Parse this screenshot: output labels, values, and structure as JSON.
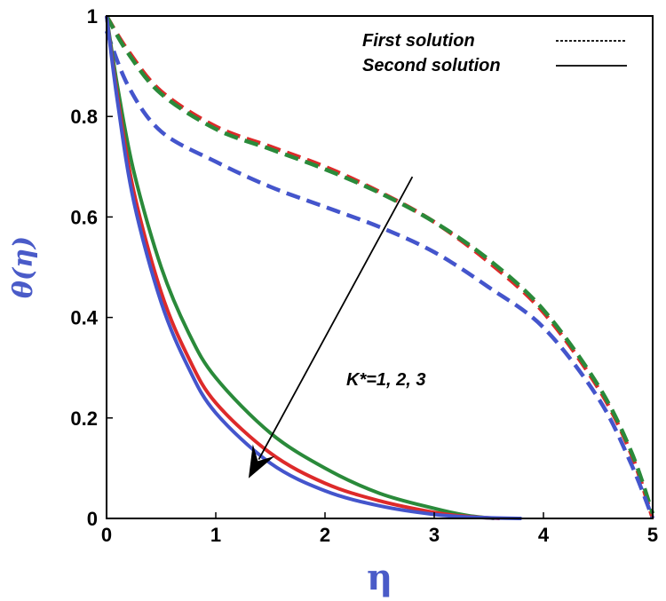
{
  "chart_data": {
    "type": "line",
    "xlabel": "η",
    "ylabel": "θ(η)",
    "xlim": [
      0,
      5
    ],
    "ylim": [
      0,
      1
    ],
    "xticks": [
      "0",
      "1",
      "2",
      "3",
      "4",
      "5"
    ],
    "yticks": [
      "0",
      "0.2",
      "0.4",
      "0.6",
      "0.8",
      "1"
    ],
    "legend": {
      "placement": "top-right",
      "entries": [
        {
          "label": "First solution",
          "style": "dashed"
        },
        {
          "label": "Second solution",
          "style": "solid"
        }
      ]
    },
    "annotation": {
      "text": "K*=1, 2, 3",
      "arrow_from": [
        2.8,
        0.68
      ],
      "arrow_to": [
        1.3,
        0.08
      ]
    },
    "series": [
      {
        "solution": "first",
        "color": "#dd2a2a",
        "dashed": true,
        "x": [
          0,
          0.2,
          0.5,
          1,
          1.5,
          2,
          2.5,
          3,
          3.5,
          4,
          4.5,
          4.8,
          5
        ],
        "y": [
          1,
          0.93,
          0.85,
          0.78,
          0.74,
          0.7,
          0.65,
          0.59,
          0.51,
          0.41,
          0.26,
          0.13,
          0.0
        ]
      },
      {
        "solution": "first",
        "color": "#2a8a3a",
        "dashed": true,
        "x": [
          0,
          0.2,
          0.5,
          1,
          1.5,
          2,
          2.5,
          3,
          3.5,
          4,
          4.5,
          4.8,
          5
        ],
        "y": [
          1,
          0.925,
          0.845,
          0.775,
          0.735,
          0.695,
          0.648,
          0.59,
          0.515,
          0.415,
          0.265,
          0.135,
          0.01
        ]
      },
      {
        "solution": "first",
        "color": "#4455cc",
        "dashed": true,
        "x": [
          0,
          0.2,
          0.5,
          1,
          1.5,
          2,
          2.5,
          3,
          3.5,
          4,
          4.5,
          4.8,
          5
        ],
        "y": [
          0.97,
          0.86,
          0.77,
          0.71,
          0.66,
          0.62,
          0.58,
          0.53,
          0.46,
          0.38,
          0.24,
          0.11,
          0.0
        ]
      },
      {
        "solution": "second",
        "color": "#2a8a3a",
        "dashed": false,
        "x": [
          0,
          0.1,
          0.25,
          0.5,
          0.75,
          1,
          1.5,
          2,
          2.5,
          3,
          3.3,
          3.55
        ],
        "y": [
          1,
          0.86,
          0.69,
          0.5,
          0.37,
          0.28,
          0.17,
          0.1,
          0.05,
          0.02,
          0.006,
          0.0
        ]
      },
      {
        "solution": "second",
        "color": "#dd2a2a",
        "dashed": false,
        "x": [
          0,
          0.1,
          0.25,
          0.5,
          0.75,
          1,
          1.5,
          2,
          2.5,
          3,
          3.3,
          3.6
        ],
        "y": [
          1,
          0.84,
          0.65,
          0.45,
          0.32,
          0.23,
          0.13,
          0.07,
          0.035,
          0.012,
          0.004,
          0.0
        ]
      },
      {
        "solution": "second",
        "color": "#4455cc",
        "dashed": false,
        "x": [
          0,
          0.1,
          0.25,
          0.5,
          0.75,
          1,
          1.5,
          2,
          2.5,
          3,
          3.4,
          3.8
        ],
        "y": [
          1,
          0.83,
          0.63,
          0.43,
          0.3,
          0.21,
          0.11,
          0.055,
          0.025,
          0.008,
          0.002,
          0.0
        ]
      }
    ]
  }
}
